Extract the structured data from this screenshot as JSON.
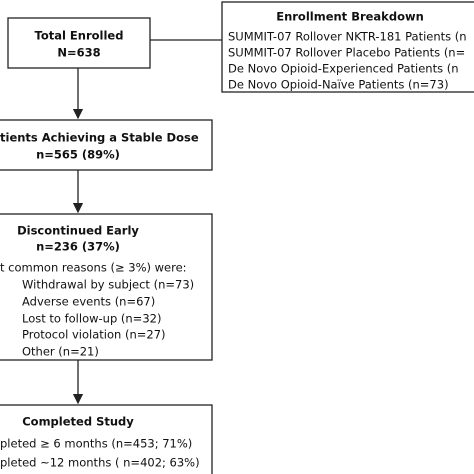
{
  "nodes": [
    {
      "title": "Total Enrolled",
      "lines": [
        "N=638"
      ]
    },
    {
      "title": "Enrollment Breakdown",
      "lines": [
        "SUMMIT-07 Rollover NKTR-181 Patients (n",
        "SUMMIT-07 Rollover Placebo Patients (n=",
        "De Novo Opioid-Experienced Patients (n",
        "De Novo Opioid-Naïve Patients (n=73)"
      ]
    },
    {
      "title": "tients Achieving a Stable Dose",
      "lines": [
        "n=565 (89%)"
      ]
    },
    {
      "title": "Discontinued Early",
      "lines": [
        "n=236 (37%)",
        "t common reasons (≥ 3%) were:",
        "Withdrawal by subject (n=73)",
        "Adverse events (n=67)",
        "Lost to follow-up (n=32)",
        "Protocol violation (n=27)",
        "Other (n=21)"
      ]
    },
    {
      "title": "Completed Study",
      "lines": [
        "pleted ≥ 6 months (n=453; 71%)",
        "pleted ~12 months ( n=402; 63%)"
      ]
    }
  ]
}
